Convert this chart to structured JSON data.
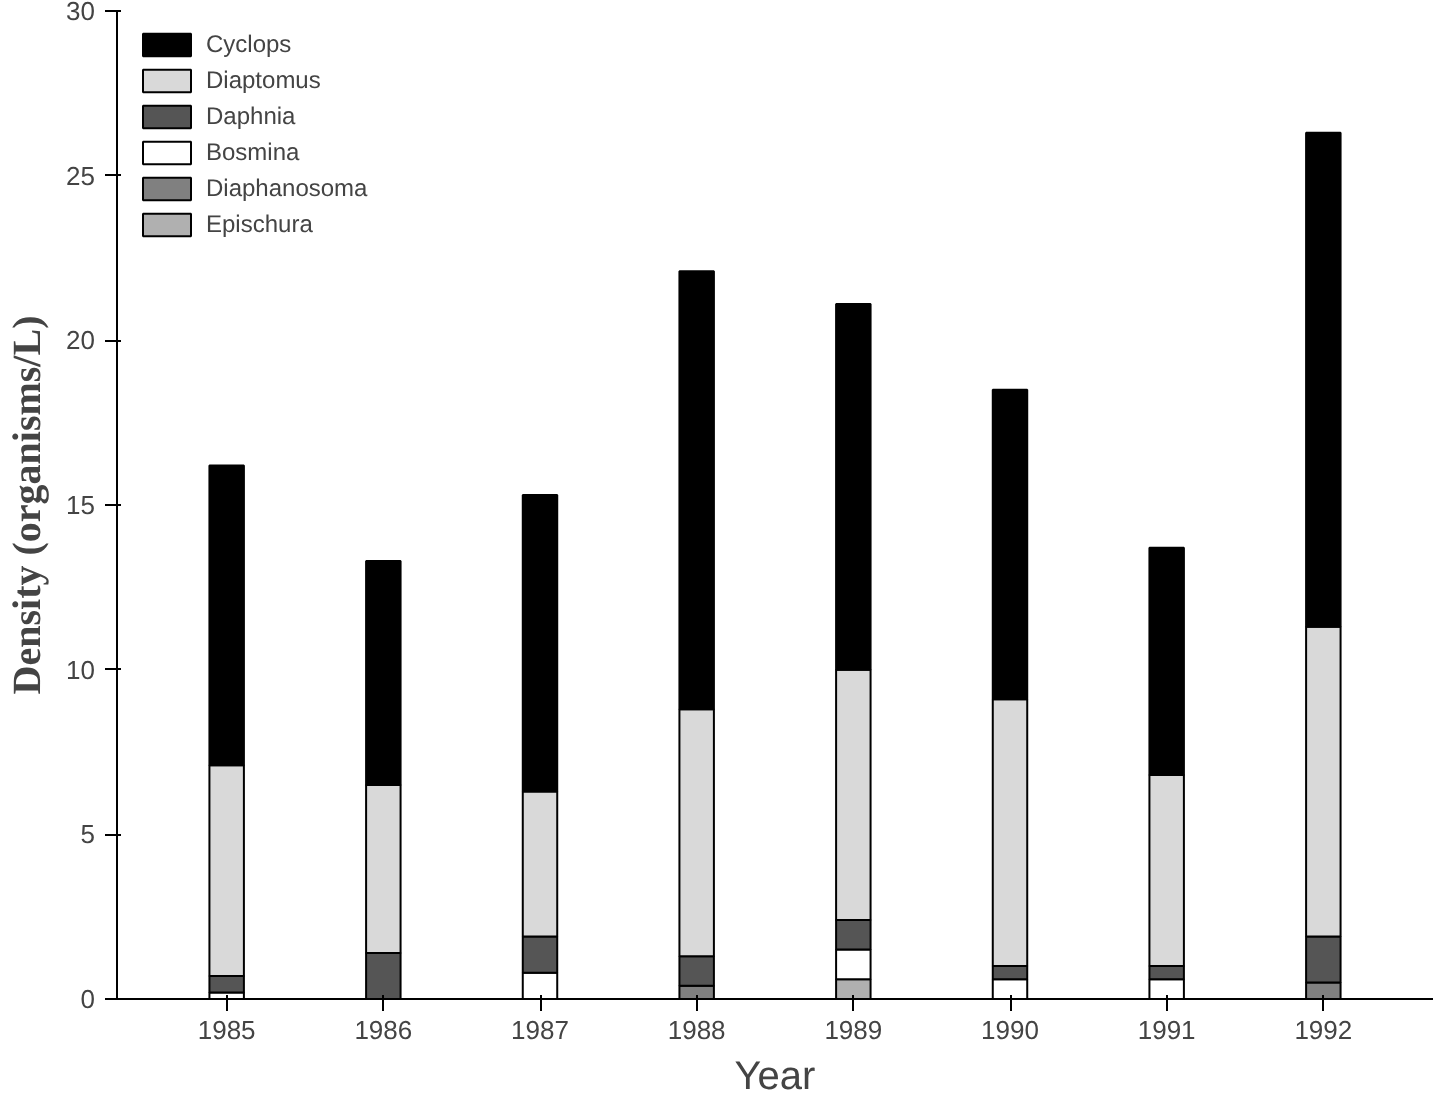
{
  "chart_data": {
    "type": "bar",
    "stacked": true,
    "xlabel": "Year",
    "ylabel": "Density (organisms/L)",
    "categories": [
      "1985",
      "1986",
      "1987",
      "1988",
      "1989",
      "1990",
      "1991",
      "1992"
    ],
    "series": [
      {
        "name": "Epischura",
        "color": "#b0b0b0",
        "values": [
          0,
          0,
          0,
          0,
          0.6,
          0,
          0,
          0
        ]
      },
      {
        "name": "Diaphanosoma",
        "color": "#808080",
        "values": [
          0,
          0,
          0,
          0.4,
          0,
          0,
          0,
          0.5
        ]
      },
      {
        "name": "Bosmina",
        "color": "#ffffff",
        "values": [
          0.2,
          0,
          0.8,
          0,
          0.9,
          0.6,
          0.6,
          0
        ]
      },
      {
        "name": "Daphnia",
        "color": "#555555",
        "values": [
          0.5,
          1.4,
          1.1,
          0.9,
          0.9,
          0.4,
          0.4,
          1.4
        ]
      },
      {
        "name": "Diaptomus",
        "color": "#d9d9d9",
        "values": [
          6.4,
          5.1,
          4.4,
          7.5,
          7.6,
          8.1,
          5.8,
          9.4
        ]
      },
      {
        "name": "Cyclops",
        "color": "#000000",
        "values": [
          9.1,
          6.8,
          9.0,
          13.3,
          11.1,
          9.4,
          6.9,
          15.0
        ]
      }
    ],
    "ylim": [
      0,
      30
    ],
    "yticks": [
      0,
      5,
      10,
      15,
      20,
      25,
      30
    ],
    "grid": false,
    "legend": "top left"
  }
}
